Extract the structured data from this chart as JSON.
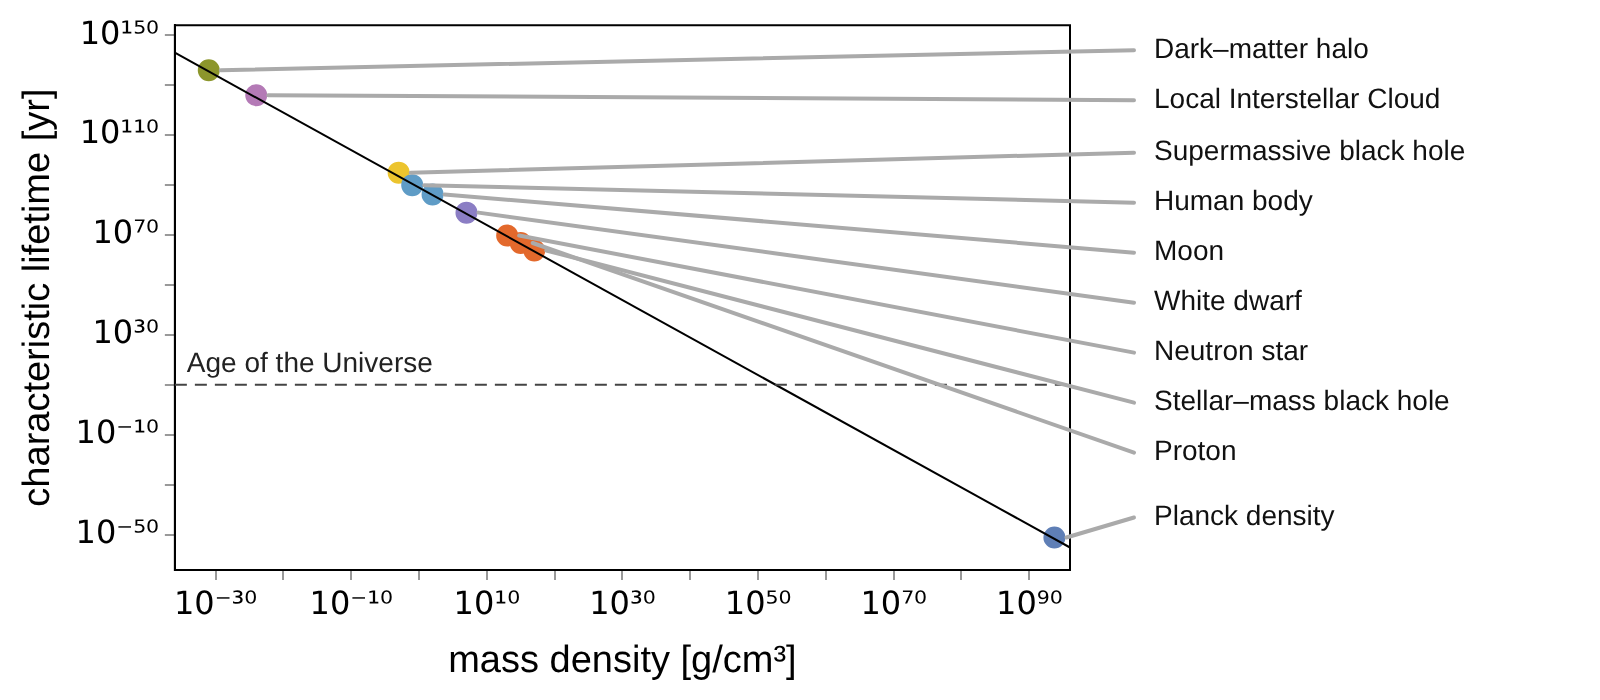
{
  "chart_data": {
    "type": "scatter",
    "xlabel": "mass density [g/cm³]",
    "ylabel": "characteristic lifetime [yr]",
    "log": "xy",
    "grid": false,
    "legend": false,
    "marker": "circle",
    "xlim": [
      1e-36,
      1e+96
    ],
    "ylim": [
      1e-64,
      1e+154
    ],
    "xticks": [
      {
        "value": 1e-30,
        "label": "10⁻³⁰"
      },
      {
        "value": 1e-20,
        "label": null
      },
      {
        "value": 1e-10,
        "label": "10⁻¹⁰"
      },
      {
        "value": 1,
        "label": null
      },
      {
        "value": 10000000000.0,
        "label": "10¹⁰"
      },
      {
        "value": 1e+20,
        "label": null
      },
      {
        "value": 1e+30,
        "label": "10³⁰"
      },
      {
        "value": 1e+40,
        "label": null
      },
      {
        "value": 1e+50,
        "label": "10⁵⁰"
      },
      {
        "value": 1e+60,
        "label": null
      },
      {
        "value": 1e+70,
        "label": "10⁷⁰"
      },
      {
        "value": 1e+80,
        "label": null
      },
      {
        "value": 1e+90,
        "label": "10⁹⁰"
      }
    ],
    "yticks": [
      {
        "value": 1e-50,
        "label": "10⁻⁵⁰"
      },
      {
        "value": 1e-30,
        "label": null
      },
      {
        "value": 1e-10,
        "label": "10⁻¹⁰"
      },
      {
        "value": 10000000000.0,
        "label": null
      },
      {
        "value": 1e+30,
        "label": "10³⁰"
      },
      {
        "value": 1e+50,
        "label": null
      },
      {
        "value": 1e+70,
        "label": "10⁷⁰"
      },
      {
        "value": 1e+90,
        "label": null
      },
      {
        "value": 1e+110,
        "label": "10¹¹⁰"
      },
      {
        "value": 1e+130,
        "label": null
      },
      {
        "value": 1e+150,
        "label": "10¹⁵⁰"
      }
    ],
    "series": [
      {
        "type": "line",
        "color": "#000000",
        "x": [
          1e-36,
          1e+96
        ],
        "values": [
          1e+143,
          1e-55
        ],
        "marker": "none"
      },
      {
        "x": [
          1e-31,
          1e-24,
          0.001,
          0.1,
          100.0,
          10000000.0,
          10000000000000.0,
          1e+17,
          1000000000000000.0,
          5e+93
        ],
        "values": [
          1e+136,
          1e+126,
          1e+95,
          1e+90,
          2e+86,
          1e+79,
          7e+69,
          7e+63,
          7e+66,
          1e-51
        ],
        "colors": [
          "#8c962c",
          "#b47ab6",
          "#ecc42e",
          "#5f9cc6",
          "#5f9cc6",
          "#8b7ec4",
          "#e3692c",
          "#e3692c",
          "#e3692c",
          "#5f7fb6"
        ]
      }
    ],
    "ref_lines": [
      {
        "axis": "y",
        "value": 13800000000.0,
        "label": "Age of the Universe",
        "line_style": "dashed",
        "color": "#444444"
      }
    ],
    "annotations": [
      {
        "text": "Dark–matter halo",
        "x": 1e-31,
        "y": 1e+136
      },
      {
        "text": "Local Interstellar Cloud",
        "x": 1e-24,
        "y": 1e+126
      },
      {
        "text": "Supermassive black hole",
        "x": 0.001,
        "y": 1e+95
      },
      {
        "text": "Human body",
        "x": 0.1,
        "y": 1e+90
      },
      {
        "text": "Moon",
        "x": 100.0,
        "y": 2e+86
      },
      {
        "text": "White dwarf",
        "x": 10000000.0,
        "y": 1e+79
      },
      {
        "text": "Neutron star",
        "x": 10000000000000.0,
        "y": 7e+69
      },
      {
        "text": "Stellar–mass black hole",
        "x": 1e+17,
        "y": 7e+63
      },
      {
        "text": "Proton",
        "x": 1000000000000000.0,
        "y": 7e+66
      },
      {
        "text": "Planck density",
        "x": 5e+93,
        "y": 1e-51
      }
    ]
  }
}
